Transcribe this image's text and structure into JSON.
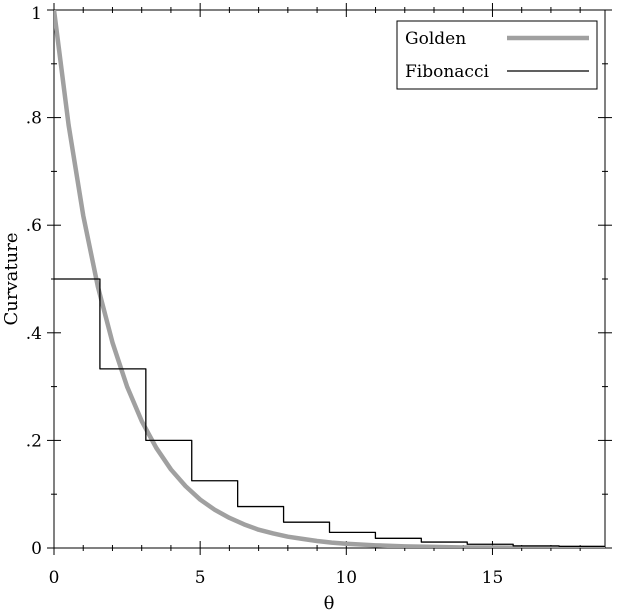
{
  "chart_data": {
    "type": "line",
    "title": "",
    "xlabel": "θ",
    "ylabel": "Curvature",
    "xlim": [
      0,
      18.85
    ],
    "ylim": [
      0,
      1
    ],
    "x_ticks": [
      {
        "value": 0,
        "label": "0"
      },
      {
        "value": 5,
        "label": "5"
      },
      {
        "value": 10,
        "label": "10"
      },
      {
        "value": 15,
        "label": "15"
      }
    ],
    "y_ticks": [
      {
        "value": 0,
        "label": "0"
      },
      {
        "value": 0.2,
        "label": ".2"
      },
      {
        "value": 0.4,
        "label": ".4"
      },
      {
        "value": 0.6,
        "label": ".6"
      },
      {
        "value": 0.8,
        "label": ".8"
      },
      {
        "value": 1,
        "label": "1"
      }
    ],
    "grid": false,
    "legend_position": "top-right",
    "series": [
      {
        "name": "Golden",
        "style": "smooth",
        "color": "#a0a0a0",
        "points": [
          [
            0,
            1.0
          ],
          [
            0.5,
            0.786
          ],
          [
            1,
            0.618
          ],
          [
            1.5,
            0.486
          ],
          [
            2,
            0.382
          ],
          [
            2.5,
            0.3
          ],
          [
            3,
            0.236
          ],
          [
            3.5,
            0.186
          ],
          [
            4,
            0.146
          ],
          [
            4.5,
            0.115
          ],
          [
            5,
            0.09
          ],
          [
            5.5,
            0.071
          ],
          [
            6,
            0.056
          ],
          [
            6.5,
            0.044
          ],
          [
            7,
            0.034
          ],
          [
            7.5,
            0.027
          ],
          [
            8,
            0.021
          ],
          [
            8.5,
            0.017
          ],
          [
            9,
            0.013
          ],
          [
            9.5,
            0.01
          ],
          [
            10,
            0.008
          ],
          [
            11,
            0.005
          ],
          [
            12,
            0.003
          ],
          [
            13,
            0.002
          ],
          [
            14,
            0.001
          ],
          [
            15,
            0.001
          ],
          [
            16,
            0.0005
          ],
          [
            17,
            0.0003
          ],
          [
            18,
            0.0002
          ],
          [
            18.85,
            0.0001
          ]
        ]
      },
      {
        "name": "Fibonacci",
        "style": "step",
        "color": "#000000",
        "points": [
          [
            0,
            0.5
          ],
          [
            1.571,
            0.5
          ],
          [
            1.571,
            0.333
          ],
          [
            3.142,
            0.333
          ],
          [
            3.142,
            0.2
          ],
          [
            4.712,
            0.2
          ],
          [
            4.712,
            0.125
          ],
          [
            6.283,
            0.125
          ],
          [
            6.283,
            0.077
          ],
          [
            7.854,
            0.077
          ],
          [
            7.854,
            0.048
          ],
          [
            9.425,
            0.048
          ],
          [
            9.425,
            0.029
          ],
          [
            10.996,
            0.029
          ],
          [
            10.996,
            0.018
          ],
          [
            12.566,
            0.018
          ],
          [
            12.566,
            0.011
          ],
          [
            14.137,
            0.011
          ],
          [
            14.137,
            0.007
          ],
          [
            15.708,
            0.007
          ],
          [
            15.708,
            0.004
          ],
          [
            17.279,
            0.004
          ],
          [
            17.279,
            0.003
          ],
          [
            18.85,
            0.003
          ]
        ]
      }
    ]
  }
}
